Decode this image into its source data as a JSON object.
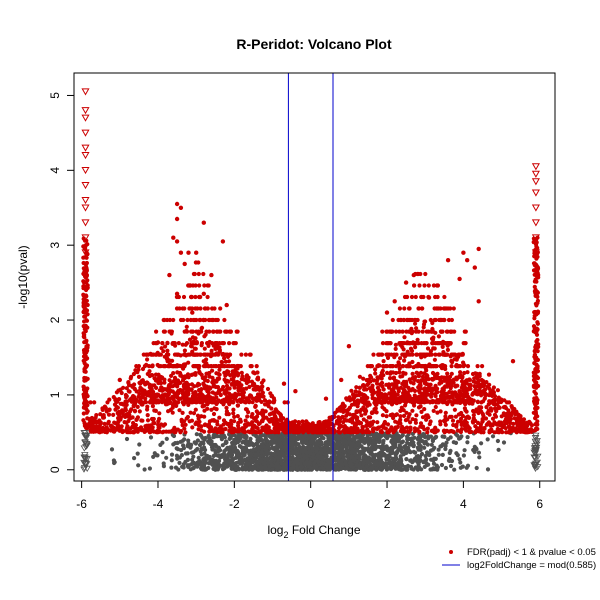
{
  "chart_data": {
    "type": "scatter",
    "title": "R-Peridot: Volcano Plot",
    "xlabel": "log2 Fold Change",
    "ylabel": "-log10(pval)",
    "xlim": [
      -6.2,
      6.4
    ],
    "ylim": [
      -0.15,
      5.3
    ],
    "x_ticks": [
      -6,
      -4,
      -2,
      0,
      2,
      4,
      6
    ],
    "y_ticks": [
      0,
      1,
      2,
      3,
      4,
      5
    ],
    "x_tick_labels": [
      "-6",
      "-4",
      "-2",
      "0",
      "2",
      "4",
      "6"
    ],
    "y_tick_labels": [
      "0",
      "1",
      "2",
      "3",
      "4",
      "5"
    ],
    "grid": false,
    "legend_position": "bottom-right",
    "vertical_lines": [
      -0.585,
      0.585
    ],
    "significance_threshold_y": 0.5,
    "colors": {
      "significant": "#cc0000",
      "non_significant": "#505050",
      "threshold_line": "#0000cc",
      "axis": "#000000"
    },
    "series": [
      {
        "name": "FDR(padj) < 1 & pvalue < 0.05",
        "marker": "filled-circle",
        "color": "#cc0000",
        "points": [
          {
            "x": -5.9,
            "y": 5.05,
            "marker": "triangle-down"
          },
          {
            "x": -5.9,
            "y": 4.8,
            "marker": "triangle-down"
          },
          {
            "x": -5.9,
            "y": 4.7,
            "marker": "triangle-down"
          },
          {
            "x": -5.9,
            "y": 4.5,
            "marker": "triangle-down"
          },
          {
            "x": -5.9,
            "y": 4.3,
            "marker": "triangle-down"
          },
          {
            "x": -5.9,
            "y": 4.2,
            "marker": "triangle-down"
          },
          {
            "x": -5.9,
            "y": 4.0,
            "marker": "triangle-down"
          },
          {
            "x": -5.9,
            "y": 3.8,
            "marker": "triangle-down"
          },
          {
            "x": -5.9,
            "y": 3.6,
            "marker": "triangle-down"
          },
          {
            "x": -5.9,
            "y": 3.5,
            "marker": "triangle-down"
          },
          {
            "x": -5.9,
            "y": 3.3,
            "marker": "triangle-down"
          },
          {
            "x": -5.9,
            "y": 3.1,
            "marker": "triangle-down"
          },
          {
            "x": -5.9,
            "y": 2.9,
            "marker": "triangle-down"
          },
          {
            "x": 5.9,
            "y": 4.05,
            "marker": "triangle-down"
          },
          {
            "x": 5.9,
            "y": 3.95,
            "marker": "triangle-down"
          },
          {
            "x": 5.9,
            "y": 3.85,
            "marker": "triangle-down"
          },
          {
            "x": 5.9,
            "y": 3.7,
            "marker": "triangle-down"
          },
          {
            "x": 5.9,
            "y": 3.5,
            "marker": "triangle-down"
          },
          {
            "x": 5.9,
            "y": 3.3,
            "marker": "triangle-down"
          },
          {
            "x": 5.9,
            "y": 3.1,
            "marker": "triangle-down"
          },
          {
            "x": 5.9,
            "y": 2.9,
            "marker": "triangle-down"
          },
          {
            "x": -3.5,
            "y": 3.55
          },
          {
            "x": -3.4,
            "y": 3.5
          },
          {
            "x": -3.5,
            "y": 3.35
          },
          {
            "x": -2.8,
            "y": 3.3
          },
          {
            "x": -3.6,
            "y": 3.1
          },
          {
            "x": -3.5,
            "y": 3.05
          },
          {
            "x": -2.3,
            "y": 3.05
          },
          {
            "x": -3.4,
            "y": 2.9
          },
          {
            "x": -3.2,
            "y": 2.9
          },
          {
            "x": -3.0,
            "y": 2.9
          },
          {
            "x": -3.3,
            "y": 2.75
          },
          {
            "x": -2.6,
            "y": 2.6
          },
          {
            "x": -3.7,
            "y": 2.6
          },
          {
            "x": -3.5,
            "y": 2.35
          },
          {
            "x": -2.8,
            "y": 2.35
          },
          {
            "x": -2.2,
            "y": 2.2
          },
          {
            "x": -3.1,
            "y": 2.1
          },
          {
            "x": -4.0,
            "y": 1.7
          },
          {
            "x": -1.5,
            "y": 1.3
          },
          {
            "x": -5.0,
            "y": 1.2
          },
          {
            "x": -0.7,
            "y": 1.15
          },
          {
            "x": 4.4,
            "y": 2.95
          },
          {
            "x": 4.0,
            "y": 2.9
          },
          {
            "x": 4.1,
            "y": 2.8
          },
          {
            "x": 3.6,
            "y": 2.8
          },
          {
            "x": 4.3,
            "y": 2.7
          },
          {
            "x": 2.7,
            "y": 2.6
          },
          {
            "x": 3.9,
            "y": 2.55
          },
          {
            "x": 2.5,
            "y": 2.5
          },
          {
            "x": 3.1,
            "y": 2.3
          },
          {
            "x": 4.4,
            "y": 2.25
          },
          {
            "x": 2.2,
            "y": 2.25
          },
          {
            "x": 2.0,
            "y": 2.1
          },
          {
            "x": 1.0,
            "y": 1.65
          },
          {
            "x": 5.3,
            "y": 1.45
          },
          {
            "x": 0.8,
            "y": 1.2
          },
          {
            "x": -0.4,
            "y": 1.05
          },
          {
            "x": 0.4,
            "y": 0.95
          }
        ]
      },
      {
        "name": "log2FoldChange = mod(0.585)",
        "marker": "line",
        "color": "#0000cc"
      }
    ]
  }
}
